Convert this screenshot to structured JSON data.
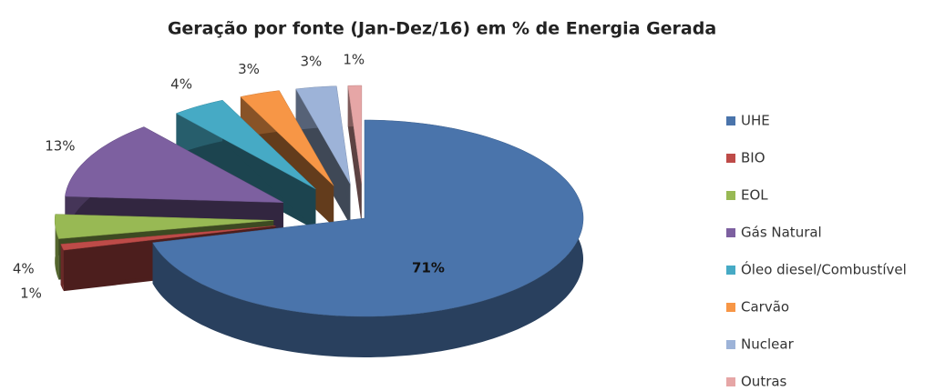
{
  "chart_data": {
    "type": "pie",
    "title": "Geração por fonte (Jan-Dez/16) em % de Energia Gerada",
    "categories": [
      "UHE",
      "BIO",
      "EOL",
      "Gás Natural",
      "Óleo diesel/Combustível",
      "Carvão",
      "Nuclear",
      "Outras"
    ],
    "values": [
      71,
      1,
      4,
      13,
      4,
      3,
      3,
      1
    ],
    "value_labels": [
      "71%",
      "1%",
      "4%",
      "13%",
      "4%",
      "3%",
      "3%",
      "1%"
    ],
    "colors": [
      "#4a74ab",
      "#be4b48",
      "#98b954",
      "#7d60a0",
      "#46aac5",
      "#f79646",
      "#9db3d8",
      "#e6a6a6"
    ]
  }
}
